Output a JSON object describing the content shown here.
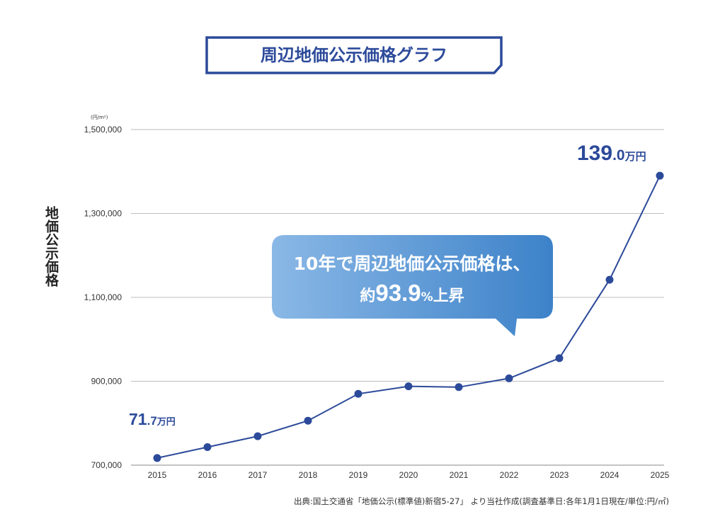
{
  "chart_data": {
    "type": "line",
    "title": "周辺地価公示価格グラフ",
    "ylabel": "地価公示価格",
    "yunit": "(円/m²)",
    "categories": [
      "2015",
      "2016",
      "2017",
      "2018",
      "2019",
      "2020",
      "2021",
      "2022",
      "2023",
      "2024",
      "2025"
    ],
    "series": [
      {
        "values": [
          717000,
          743000,
          769000,
          806000,
          870000,
          888000,
          886000,
          907000,
          955000,
          1142000,
          1390000
        ]
      }
    ],
    "ylim": [
      700000,
      1500000
    ],
    "yticks": [
      700000,
      900000,
      1100000,
      1300000,
      1500000
    ],
    "ytick_labels": [
      "700,000",
      "900,000",
      "1,100,000",
      "1,300,000",
      "1,500,000"
    ],
    "grid": true,
    "annotations": {
      "first": {
        "number": "71",
        "decimal": ".7",
        "unit": "万円"
      },
      "last": {
        "number": "139",
        "decimal": ".0",
        "unit": "万円"
      },
      "callout": {
        "line1": "10年で周辺地価公示価格は、",
        "line2_prefix": "約",
        "line2_number": "93.9",
        "line2_percent": "%",
        "line2_suffix": "上昇"
      }
    },
    "source": "出典:国土交通省「地価公示(標準値)新宿5-27」 より当社作成(調査基準日:各年1月1日現在/単位:円/㎡)",
    "colors": {
      "line": "#2c4a9a",
      "marker": "#2c4a9a",
      "title_border": "#2c4a9a",
      "grid": "#bdbdbd",
      "bubble_start": "#8ab8e6",
      "bubble_end": "#3d82c9"
    }
  }
}
